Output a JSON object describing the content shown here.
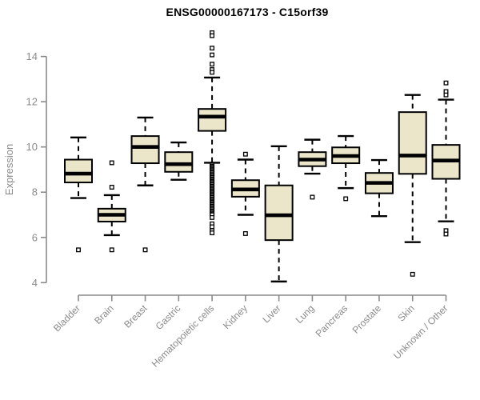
{
  "title": "ENSG00000167173 - C15orf39",
  "chart_data": {
    "type": "boxplot",
    "title": "ENSG00000167173 - C15orf39",
    "xlabel": "",
    "ylabel": "Expression",
    "ylim": [
      4,
      15.2
    ],
    "yticks": [
      4,
      6,
      8,
      10,
      12,
      14
    ],
    "grid": false,
    "legend": "none",
    "categories": [
      "Bladder",
      "Brain",
      "Breast",
      "Gastric",
      "Hematopoietic cells",
      "Kidney",
      "Liver",
      "Lung",
      "Pancreas",
      "Prostate",
      "Skin",
      "Unknown / Other"
    ],
    "series": [
      {
        "name": "Bladder",
        "whisker_low": 7.74,
        "q1": 8.43,
        "median": 8.82,
        "q3": 9.44,
        "whisker_high": 10.42,
        "outliers": [
          5.45
        ]
      },
      {
        "name": "Brain",
        "whisker_low": 6.1,
        "q1": 6.7,
        "median": 7.0,
        "q3": 7.27,
        "whisker_high": 7.87,
        "outliers": [
          9.3,
          8.22,
          5.45
        ]
      },
      {
        "name": "Breast",
        "whisker_low": 8.3,
        "q1": 9.28,
        "median": 10.0,
        "q3": 10.48,
        "whisker_high": 11.3,
        "outliers": [
          5.45
        ]
      },
      {
        "name": "Gastric",
        "whisker_low": 8.55,
        "q1": 8.9,
        "median": 9.24,
        "q3": 9.77,
        "whisker_high": 10.2,
        "outliers": []
      },
      {
        "name": "Hematopoietic cells",
        "whisker_low": 9.3,
        "q1": 10.71,
        "median": 11.34,
        "q3": 11.68,
        "whisker_high": 13.07,
        "outliers": [
          15.05,
          14.92,
          14.37,
          14.07,
          13.66,
          13.42,
          13.3,
          9.2,
          9.14,
          9.09,
          9.03,
          8.98,
          8.92,
          8.87,
          8.81,
          8.76,
          8.7,
          8.65,
          8.59,
          8.54,
          8.48,
          8.43,
          8.37,
          8.32,
          8.26,
          8.21,
          8.15,
          8.1,
          8.04,
          7.99,
          7.93,
          7.88,
          7.82,
          7.77,
          7.71,
          7.66,
          7.6,
          7.55,
          7.49,
          7.44,
          7.38,
          7.33,
          7.27,
          7.22,
          7.16,
          7.11,
          7.05,
          7.0,
          6.88,
          6.6,
          6.47,
          6.3,
          6.2
        ]
      },
      {
        "name": "Kidney",
        "whisker_low": 7.0,
        "q1": 7.8,
        "median": 8.12,
        "q3": 8.53,
        "whisker_high": 9.44,
        "outliers": [
          9.68,
          6.17
        ]
      },
      {
        "name": "Liver",
        "whisker_low": 4.05,
        "q1": 5.88,
        "median": 6.98,
        "q3": 8.3,
        "whisker_high": 10.03,
        "outliers": []
      },
      {
        "name": "Lung",
        "whisker_low": 8.82,
        "q1": 9.15,
        "median": 9.44,
        "q3": 9.77,
        "whisker_high": 10.32,
        "outliers": [
          7.78
        ]
      },
      {
        "name": "Pancreas",
        "whisker_low": 8.18,
        "q1": 9.28,
        "median": 9.6,
        "q3": 9.98,
        "whisker_high": 10.48,
        "outliers": [
          7.71
        ]
      },
      {
        "name": "Prostate",
        "whisker_low": 6.94,
        "q1": 7.95,
        "median": 8.41,
        "q3": 8.85,
        "whisker_high": 9.42,
        "outliers": []
      },
      {
        "name": "Skin",
        "whisker_low": 5.79,
        "q1": 8.81,
        "median": 9.62,
        "q3": 11.54,
        "whisker_high": 12.3,
        "outliers": [
          4.37
        ]
      },
      {
        "name": "Unknown / Other",
        "whisker_low": 6.71,
        "q1": 8.59,
        "median": 9.4,
        "q3": 10.09,
        "whisker_high": 12.09,
        "outliers": [
          12.83,
          12.45,
          12.3,
          6.3,
          6.15
        ]
      }
    ],
    "colors": {
      "box_fill": "#EBE5C9",
      "box_border": "#000000",
      "median": "#000000",
      "whisker": "#000000",
      "outlier_fill": "#ffffff",
      "axis": "#8a8a8a",
      "tick_label": "#8a8a8a",
      "title": "#000000",
      "background": "#ffffff"
    }
  }
}
